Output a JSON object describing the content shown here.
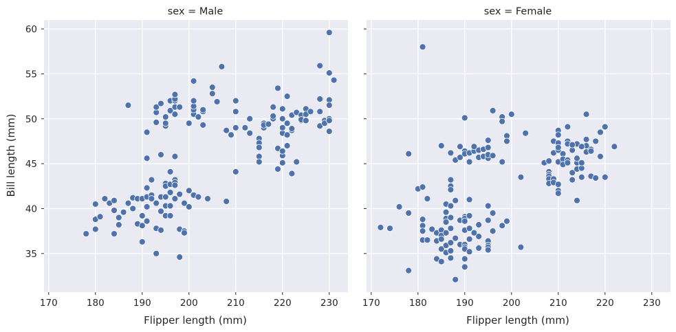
{
  "chart_data": [
    {
      "type": "scatter",
      "title": "sex = Male",
      "xlabel": "Flipper length (mm)",
      "ylabel": "Bill length (mm)",
      "xlim": [
        169,
        234
      ],
      "ylim": [
        30.7,
        61
      ],
      "xticks": [
        170,
        180,
        190,
        200,
        210,
        220,
        230
      ],
      "yticks": [
        35,
        40,
        45,
        50,
        55,
        60
      ],
      "color": "#4c72b0",
      "grid": true,
      "points": [
        [
          178,
          37.2
        ],
        [
          180,
          40.5
        ],
        [
          180,
          38.8
        ],
        [
          180,
          37.7
        ],
        [
          181,
          39.1
        ],
        [
          182,
          41.1
        ],
        [
          183,
          40.6
        ],
        [
          184,
          40.9
        ],
        [
          184,
          39.8
        ],
        [
          184,
          37.2
        ],
        [
          185,
          39.0
        ],
        [
          185,
          38.2
        ],
        [
          186,
          39.6
        ],
        [
          187,
          40.6
        ],
        [
          188,
          41.2
        ],
        [
          188,
          40.0
        ],
        [
          189,
          41.1
        ],
        [
          189,
          38.3
        ],
        [
          190,
          41.1
        ],
        [
          190,
          39.2
        ],
        [
          190,
          38.1
        ],
        [
          190,
          36.3
        ],
        [
          191,
          42.3
        ],
        [
          191,
          41.3
        ],
        [
          191,
          40.2
        ],
        [
          191,
          38.6
        ],
        [
          191,
          45.6
        ],
        [
          191,
          48.5
        ],
        [
          192,
          41.5
        ],
        [
          192,
          41.1
        ],
        [
          192,
          43.2
        ],
        [
          193,
          40.6
        ],
        [
          193,
          37.8
        ],
        [
          193,
          35.0
        ],
        [
          194,
          41.3
        ],
        [
          194,
          39.7
        ],
        [
          194,
          37.6
        ],
        [
          194,
          46.0
        ],
        [
          195,
          42.8
        ],
        [
          195,
          42.5
        ],
        [
          195,
          41.3
        ],
        [
          195,
          40.3
        ],
        [
          195,
          39.2
        ],
        [
          196,
          42.7
        ],
        [
          196,
          41.8
        ],
        [
          196,
          40.3
        ],
        [
          196,
          39.2
        ],
        [
          196,
          44.1
        ],
        [
          197,
          43.2
        ],
        [
          197,
          42.9
        ],
        [
          197,
          42.6
        ],
        [
          197,
          41.1
        ],
        [
          197,
          45.8
        ],
        [
          198,
          37.7
        ],
        [
          198,
          34.6
        ],
        [
          198,
          41.6
        ],
        [
          199,
          40.6
        ],
        [
          199,
          37.5
        ],
        [
          199,
          37.3
        ],
        [
          200,
          42.0
        ],
        [
          200,
          40.2
        ],
        [
          201,
          41.5
        ],
        [
          202,
          41.3
        ],
        [
          204,
          41.1
        ],
        [
          208,
          40.8
        ],
        [
          187,
          51.5
        ],
        [
          193,
          49.6
        ],
        [
          193,
          50.7
        ],
        [
          193,
          51.3
        ],
        [
          194,
          51.7
        ],
        [
          195,
          49.2
        ],
        [
          195,
          49.5
        ],
        [
          195,
          50.2
        ],
        [
          196,
          50.9
        ],
        [
          196,
          52.0
        ],
        [
          197,
          50.5
        ],
        [
          197,
          51.3
        ],
        [
          197,
          52.0
        ],
        [
          197,
          52.2
        ],
        [
          197,
          52.7
        ],
        [
          198,
          51.3
        ],
        [
          200,
          49.5
        ],
        [
          201,
          50.5
        ],
        [
          201,
          51.0
        ],
        [
          201,
          51.4
        ],
        [
          201,
          52.0
        ],
        [
          201,
          54.2
        ],
        [
          202,
          50.2
        ],
        [
          203,
          50.8
        ],
        [
          203,
          51.0
        ],
        [
          203,
          49.3
        ],
        [
          205,
          52.8
        ],
        [
          205,
          53.5
        ],
        [
          206,
          51.9
        ],
        [
          207,
          55.8
        ],
        [
          208,
          48.7
        ],
        [
          209,
          48.2
        ],
        [
          210,
          50.8
        ],
        [
          210,
          49.0
        ],
        [
          210,
          52.0
        ],
        [
          210,
          44.1
        ],
        [
          212,
          49.0
        ],
        [
          213,
          50.0
        ],
        [
          213,
          48.4
        ],
        [
          215,
          47.8
        ],
        [
          215,
          47.3
        ],
        [
          215,
          46.8
        ],
        [
          215,
          45.8
        ],
        [
          215,
          45.2
        ],
        [
          216,
          49.5
        ],
        [
          216,
          49.0
        ],
        [
          216,
          49.3
        ],
        [
          217,
          49.4
        ],
        [
          218,
          50.0
        ],
        [
          218,
          50.3
        ],
        [
          218,
          51.3
        ],
        [
          219,
          53.4
        ],
        [
          219,
          46.7
        ],
        [
          219,
          44.4
        ],
        [
          220,
          48.4
        ],
        [
          220,
          49.0
        ],
        [
          220,
          50.0
        ],
        [
          220,
          51.1
        ],
        [
          220,
          45.9
        ],
        [
          220,
          45.1
        ],
        [
          220,
          46.4
        ],
        [
          221,
          52.5
        ],
        [
          221,
          48.2
        ],
        [
          221,
          47.0
        ],
        [
          221,
          49.5
        ],
        [
          222,
          48.7
        ],
        [
          222,
          48.9
        ],
        [
          222,
          50.4
        ],
        [
          222,
          43.9
        ],
        [
          223,
          50.7
        ],
        [
          223,
          45.2
        ],
        [
          224,
          50.4
        ],
        [
          224,
          49.8
        ],
        [
          224,
          49.9
        ],
        [
          225,
          51.1
        ],
        [
          225,
          50.5
        ],
        [
          225,
          49.8
        ],
        [
          226,
          50.8
        ],
        [
          228,
          55.9
        ],
        [
          228,
          52.2
        ],
        [
          228,
          50.8
        ],
        [
          228,
          49.2
        ],
        [
          229,
          49.8
        ],
        [
          229,
          49.5
        ],
        [
          230,
          59.6
        ],
        [
          230,
          55.1
        ],
        [
          230,
          52.1
        ],
        [
          230,
          51.5
        ],
        [
          230,
          50.0
        ],
        [
          230,
          49.8
        ],
        [
          230,
          48.6
        ],
        [
          231,
          54.3
        ]
      ]
    },
    {
      "type": "scatter",
      "title": "sex = Female",
      "xlabel": "Flipper length (mm)",
      "ylabel": "",
      "xlim": [
        169,
        234
      ],
      "ylim": [
        30.7,
        61
      ],
      "xticks": [
        170,
        180,
        190,
        200,
        210,
        220,
        230
      ],
      "yticks": [
        35,
        40,
        45,
        50,
        55,
        60
      ],
      "color": "#4c72b0",
      "grid": true,
      "points": [
        [
          172,
          37.9
        ],
        [
          174,
          37.8
        ],
        [
          176,
          40.2
        ],
        [
          178,
          39.5
        ],
        [
          178,
          33.1
        ],
        [
          178,
          46.1
        ],
        [
          180,
          42.2
        ],
        [
          181,
          42.4
        ],
        [
          181,
          38.8
        ],
        [
          181,
          38.1
        ],
        [
          181,
          37.5
        ],
        [
          181,
          36.5
        ],
        [
          181,
          58.0
        ],
        [
          182,
          41.1
        ],
        [
          182,
          36.5
        ],
        [
          183,
          37.7
        ],
        [
          184,
          37.3
        ],
        [
          184,
          36.4
        ],
        [
          184,
          34.4
        ],
        [
          185,
          37.6
        ],
        [
          185,
          37.0
        ],
        [
          185,
          36.6
        ],
        [
          185,
          35.5
        ],
        [
          185,
          34.1
        ],
        [
          185,
          47.0
        ],
        [
          186,
          40.5
        ],
        [
          186,
          39.6
        ],
        [
          186,
          38.9
        ],
        [
          186,
          38.5
        ],
        [
          186,
          37.3
        ],
        [
          186,
          35.9
        ],
        [
          186,
          35.1
        ],
        [
          187,
          43.2
        ],
        [
          187,
          42.5
        ],
        [
          187,
          42.1
        ],
        [
          187,
          40.3
        ],
        [
          187,
          39.0
        ],
        [
          187,
          37.8
        ],
        [
          187,
          36.2
        ],
        [
          187,
          34.5
        ],
        [
          187,
          46.2
        ],
        [
          187,
          35.3
        ],
        [
          188,
          45.4
        ],
        [
          188,
          40.9
        ],
        [
          188,
          36.7
        ],
        [
          188,
          32.1
        ],
        [
          189,
          45.7
        ],
        [
          189,
          46.9
        ],
        [
          189,
          38.7
        ],
        [
          189,
          36.0
        ],
        [
          190,
          50.1
        ],
        [
          190,
          46.4
        ],
        [
          190,
          46.1
        ],
        [
          190,
          39.1
        ],
        [
          190,
          38.9
        ],
        [
          190,
          38.6
        ],
        [
          190,
          37.6
        ],
        [
          190,
          36.0
        ],
        [
          190,
          35.7
        ],
        [
          190,
          35.5
        ],
        [
          190,
          34.4
        ],
        [
          190,
          33.5
        ],
        [
          191,
          46.2
        ],
        [
          191,
          45.2
        ],
        [
          191,
          41.0
        ],
        [
          191,
          39.2
        ],
        [
          191,
          37.8
        ],
        [
          191,
          36.6
        ],
        [
          191,
          35.2
        ],
        [
          192,
          46.4
        ],
        [
          192,
          46.9
        ],
        [
          192,
          37.3
        ],
        [
          193,
          46.5
        ],
        [
          193,
          45.7
        ],
        [
          193,
          38.2
        ],
        [
          193,
          36.9
        ],
        [
          193,
          35.6
        ],
        [
          194,
          46.6
        ],
        [
          194,
          45.8
        ],
        [
          194,
          45.8
        ],
        [
          195,
          46.8
        ],
        [
          195,
          47.6
        ],
        [
          195,
          45.6
        ],
        [
          195,
          40.3
        ],
        [
          195,
          38.7
        ],
        [
          195,
          36.4
        ],
        [
          195,
          35.9
        ],
        [
          195,
          35.7
        ],
        [
          195,
          35.4
        ],
        [
          195,
          46.0
        ],
        [
          196,
          45.9
        ],
        [
          196,
          39.5
        ],
        [
          196,
          37.5
        ],
        [
          196,
          50.9
        ],
        [
          198,
          50.2
        ],
        [
          198,
          49.7
        ],
        [
          198,
          45.2
        ],
        [
          198,
          38.1
        ],
        [
          199,
          48.1
        ],
        [
          199,
          47.5
        ],
        [
          199,
          38.6
        ],
        [
          200,
          50.5
        ],
        [
          202,
          43.5
        ],
        [
          202,
          35.7
        ],
        [
          203,
          48.4
        ],
        [
          207,
          45.1
        ],
        [
          208,
          45.3
        ],
        [
          208,
          44.1
        ],
        [
          208,
          43.8
        ],
        [
          208,
          43.6
        ],
        [
          208,
          43.3
        ],
        [
          208,
          42.8
        ],
        [
          209,
          47.5
        ],
        [
          209,
          46.2
        ],
        [
          209,
          43.3
        ],
        [
          209,
          42.9
        ],
        [
          210,
          48.7
        ],
        [
          210,
          48.2
        ],
        [
          210,
          47.3
        ],
        [
          210,
          46.5
        ],
        [
          210,
          45.2
        ],
        [
          210,
          42.0
        ],
        [
          210,
          41.7
        ],
        [
          210,
          42.7
        ],
        [
          211,
          46.1
        ],
        [
          211,
          45.5
        ],
        [
          211,
          44.9
        ],
        [
          212,
          49.1
        ],
        [
          212,
          47.5
        ],
        [
          212,
          47.2
        ],
        [
          212,
          45.4
        ],
        [
          212,
          45.1
        ],
        [
          213,
          46.5
        ],
        [
          213,
          44.0
        ],
        [
          213,
          43.2
        ],
        [
          214,
          47.2
        ],
        [
          214,
          45.1
        ],
        [
          214,
          44.4
        ],
        [
          214,
          40.9
        ],
        [
          214,
          45.6
        ],
        [
          215,
          43.5
        ],
        [
          215,
          44.5
        ],
        [
          215,
          45.1
        ],
        [
          216,
          50.5
        ],
        [
          216,
          47.7
        ],
        [
          216,
          46.3
        ],
        [
          217,
          46.6
        ],
        [
          217,
          46.4
        ],
        [
          217,
          43.6
        ],
        [
          218,
          47.5
        ],
        [
          218,
          43.4
        ],
        [
          219,
          48.5
        ],
        [
          219,
          45.8
        ],
        [
          220,
          49.1
        ],
        [
          220,
          43.5
        ],
        [
          222,
          46.9
        ],
        [
          216,
          47.0
        ],
        [
          213,
          47.1
        ],
        [
          210,
          46.8
        ],
        [
          215,
          46.9
        ]
      ]
    }
  ]
}
